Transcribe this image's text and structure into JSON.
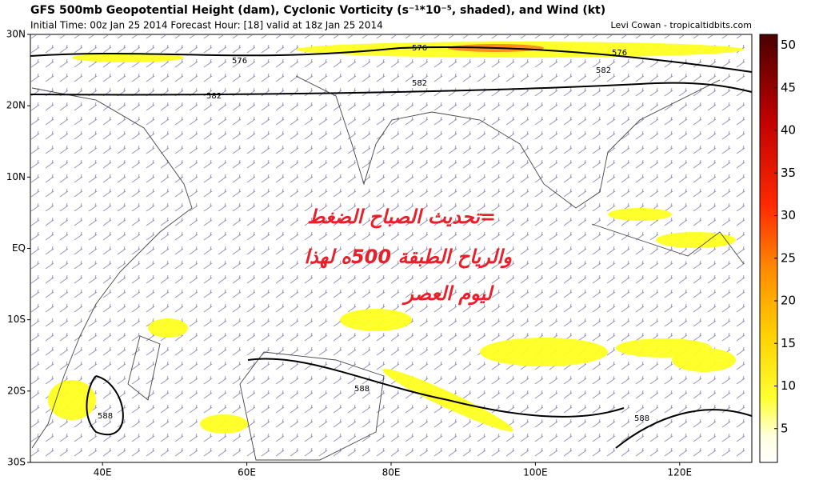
{
  "header": {
    "title": "GFS 500mb Geopotential Height (dam), Cyclonic Vorticity (s⁻¹*10⁻⁵, shaded), and Wind (kt)",
    "subtitle": "Initial Time: 00z Jan 25 2014 Forecast Hour: [18] valid at 18z Jan 25 2014",
    "credit": "Levi Cowan - tropicaltidbits.com"
  },
  "map": {
    "lat_labels": [
      "30N",
      "20N",
      "10N",
      "EQ",
      "10S",
      "20S",
      "30S"
    ],
    "lon_labels": [
      "40E",
      "60E",
      "80E",
      "100E",
      "120E"
    ],
    "contour_labels": [
      576,
      576,
      576,
      582,
      582,
      582,
      588,
      588,
      588
    ]
  },
  "colorbar": {
    "ticks": [
      5,
      10,
      15,
      20,
      25,
      30,
      35,
      40,
      45,
      50
    ]
  },
  "overlay": {
    "lines": [
      "=تحديث الصباح الضغط",
      "والرياح الطبقة 500ه لهذا",
      "ليوم العصر"
    ]
  }
}
